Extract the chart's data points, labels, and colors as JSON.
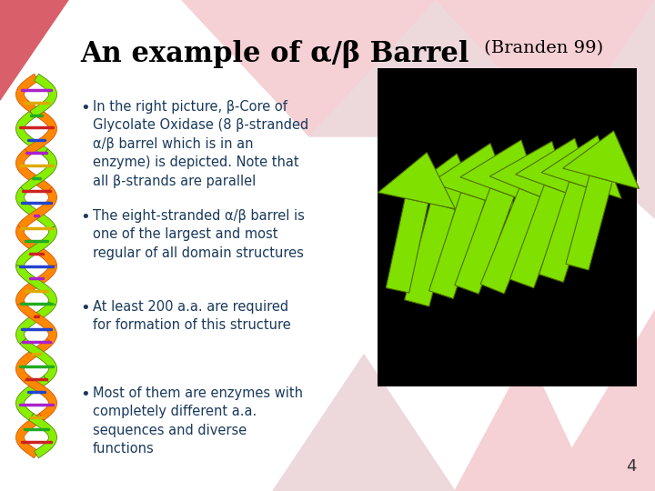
{
  "title_main": "An example of α/β Barrel",
  "title_sub": " (Branden 99)",
  "background_color": "#ffffff",
  "text_color": "#1a3a5c",
  "title_color": "#000000",
  "bullet_points": [
    "In the right picture, β-Core of\nGlycolate Oxidase (8 β-stranded\nα/β barrel which is in an\nenzyme) is depicted. Note that\nall β-strands are parallel",
    "The eight-stranded α/β barrel is\none of the largest and most\nregular of all domain structures",
    "At least 200 a.a. are required\nfor formation of this structure",
    "Most of them are enzymes with\ncompletely different a.a.\nsequences and diverse\nfunctions"
  ],
  "slide_number": "4",
  "image_bg": "#000000",
  "corner_color": "#d9606a",
  "tri_light": "#f5d0d5",
  "tri_medium": "#edd8dc",
  "arrow_color": "#80e000",
  "arrow_dark": "#507000"
}
